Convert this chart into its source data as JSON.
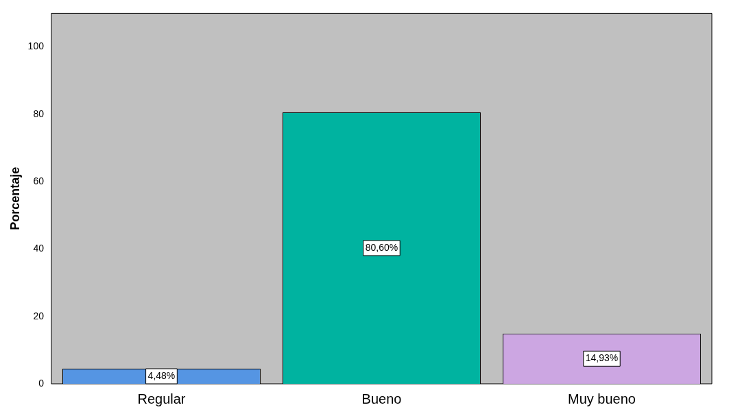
{
  "chart_data": {
    "type": "bar",
    "ylabel": "Porcentaje",
    "categories": [
      "Regular",
      "Bueno",
      "Muy bueno"
    ],
    "values": [
      4.48,
      80.6,
      14.93
    ],
    "colors": [
      "#5595e3",
      "#00b3a0",
      "#cca6e2"
    ],
    "value_labels": [
      "4,48%",
      "80,60%",
      "14,93%"
    ],
    "ylim": [
      0,
      110
    ],
    "yticks": [
      0,
      20,
      40,
      60,
      80,
      100
    ],
    "grid": false,
    "legend": false
  }
}
